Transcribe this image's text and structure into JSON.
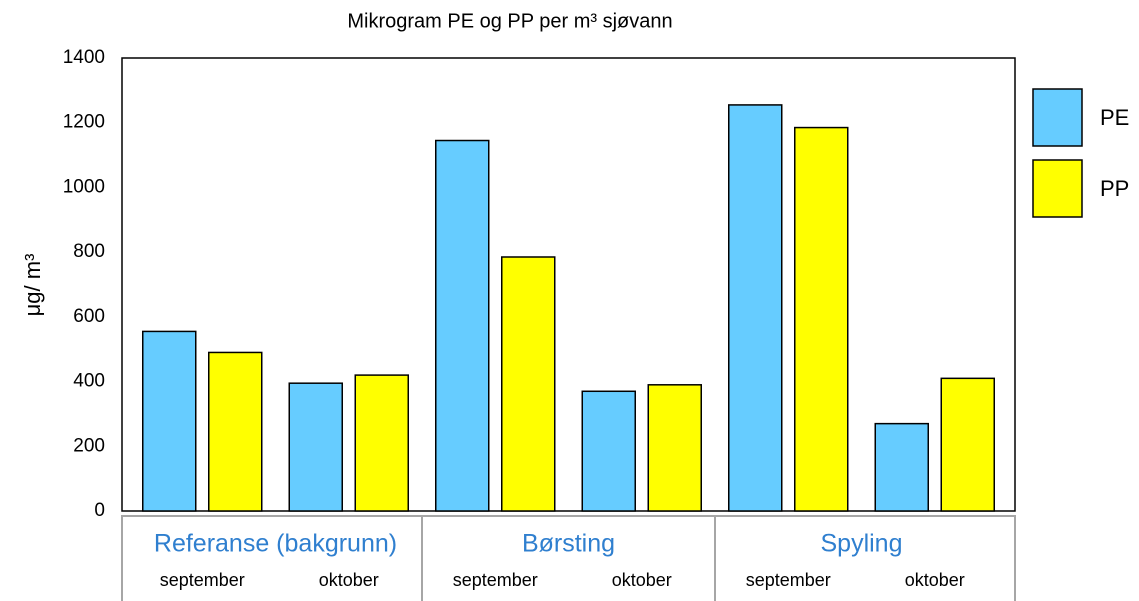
{
  "chart_data": {
    "type": "bar",
    "title": "Mikrogram PE og PP per m³ sjøvann",
    "y_label": "μg/ m³",
    "groups": [
      "Referanse (bakgrunn)",
      "Børsting",
      "Spyling"
    ],
    "categories": [
      "september",
      "oktober",
      "september",
      "oktober",
      "september",
      "oktober"
    ],
    "series": [
      {
        "name": "PE",
        "color": "#66ccff",
        "values": [
          555,
          395,
          1145,
          370,
          1255,
          270
        ]
      },
      {
        "name": "PP",
        "color": "#ffff00",
        "values": [
          490,
          420,
          785,
          390,
          1185,
          410
        ]
      }
    ],
    "ylim": [
      0,
      1400
    ],
    "yticks": [
      0,
      200,
      400,
      600,
      800,
      1000,
      1200,
      1400
    ],
    "grid": false,
    "legend": "right",
    "group_label_color": "#2f7fcf"
  }
}
